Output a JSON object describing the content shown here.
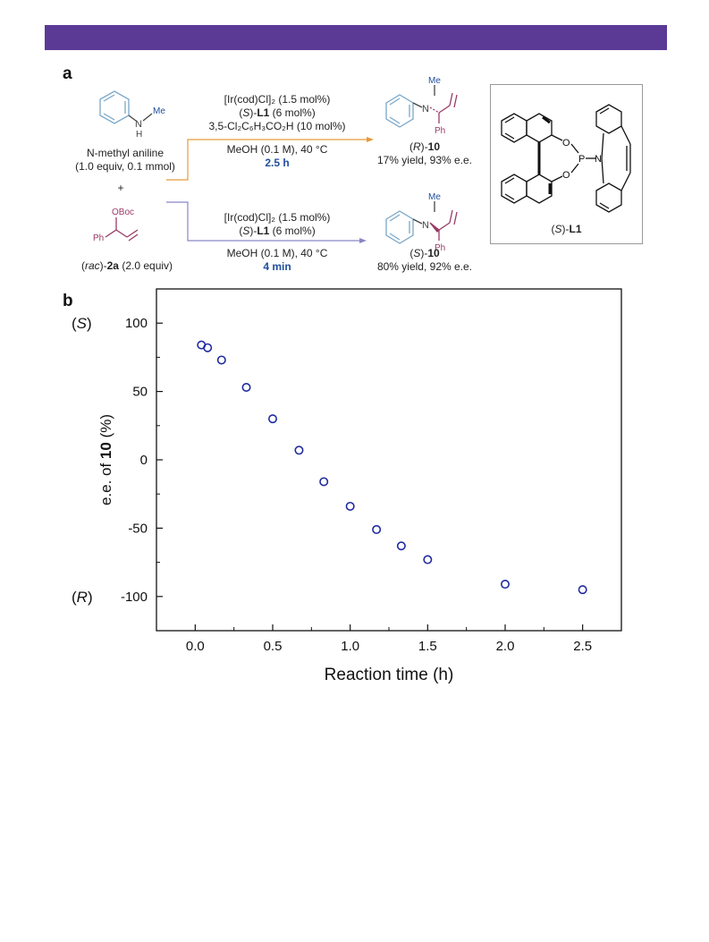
{
  "colors": {
    "banner": "#5b3a96",
    "orange_arrow": "#e59a3b",
    "purple_arrow": "#8a86c6",
    "ring_blue": "#7aa7c9",
    "allyl_pink": "#9a3a66",
    "marker": "#1f2aa0"
  },
  "panel_a": {
    "label": "a",
    "reactant_amine": {
      "name": "N-methyl aniline",
      "equiv": "(1.0 equiv, 0.1 mmol)",
      "me": "Me",
      "nh": "H",
      "n": "N"
    },
    "plus": "+",
    "reactant_allyl": {
      "oboc": "OBoc",
      "ph": "Ph",
      "label_prefix": "rac",
      "label_compound": "2a",
      "equiv": "(2.0 equiv)"
    },
    "upper_conditions": {
      "line1": "[Ir(cod)Cl]₂ (1.5 mol%)",
      "line2_prefix": "S",
      "line2_ligand": "L1",
      "line2_suffix": " (6 mol%)",
      "line3": "3,5-Cl₂C₆H₃CO₂H (10 mol%)",
      "line4": "MeOH (0.1 M), 40 °C",
      "time": "2.5 h"
    },
    "lower_conditions": {
      "line1": "[Ir(cod)Cl]₂ (1.5 mol%)",
      "line2_prefix": "S",
      "line2_ligand": "L1",
      "line2_suffix": " (6 mol%)",
      "line4": "MeOH (0.1 M), 40 °C",
      "time": "4 min"
    },
    "product_R": {
      "config": "R",
      "compound": "10",
      "result": "17% yield, 93% e.e.",
      "me": "Me",
      "n": "N",
      "ph": "Ph"
    },
    "product_S": {
      "config": "S",
      "compound": "10",
      "result": "80% yield, 92% e.e.",
      "me": "Me",
      "n": "N",
      "ph": "Ph"
    },
    "ligand": {
      "config": "S",
      "name": "L1",
      "o": "O",
      "p": "P",
      "n": "N"
    }
  },
  "panel_b": {
    "label": "b"
  },
  "chart_data": {
    "type": "scatter",
    "xlabel": "Reaction time (h)",
    "ylabel_prefix": "e.e. of ",
    "ylabel_bold": "10",
    "ylabel_suffix": " (%)",
    "xlim": [
      -0.25,
      2.75
    ],
    "ylim": [
      -125,
      125
    ],
    "xticks": [
      0.0,
      0.5,
      1.0,
      1.5,
      2.0,
      2.5
    ],
    "xtick_labels": [
      "0.0",
      "0.5",
      "1.0",
      "1.5",
      "2.0",
      "2.5"
    ],
    "yticks": [
      100,
      50,
      0,
      -50,
      -100
    ],
    "ytick_labels": [
      "100",
      "50",
      "0",
      "-50",
      "-100"
    ],
    "annotations": [
      {
        "text": "S",
        "y": 100
      },
      {
        "text": "R",
        "y": -100
      }
    ],
    "grid": false,
    "marker": "open-circle",
    "x": [
      0.04,
      0.08,
      0.17,
      0.33,
      0.5,
      0.67,
      0.83,
      1.0,
      1.17,
      1.33,
      1.5,
      2.0,
      2.5
    ],
    "y": [
      84,
      82,
      73,
      53,
      30,
      7,
      -16,
      -34,
      -51,
      -63,
      -73,
      -91,
      -95
    ]
  }
}
